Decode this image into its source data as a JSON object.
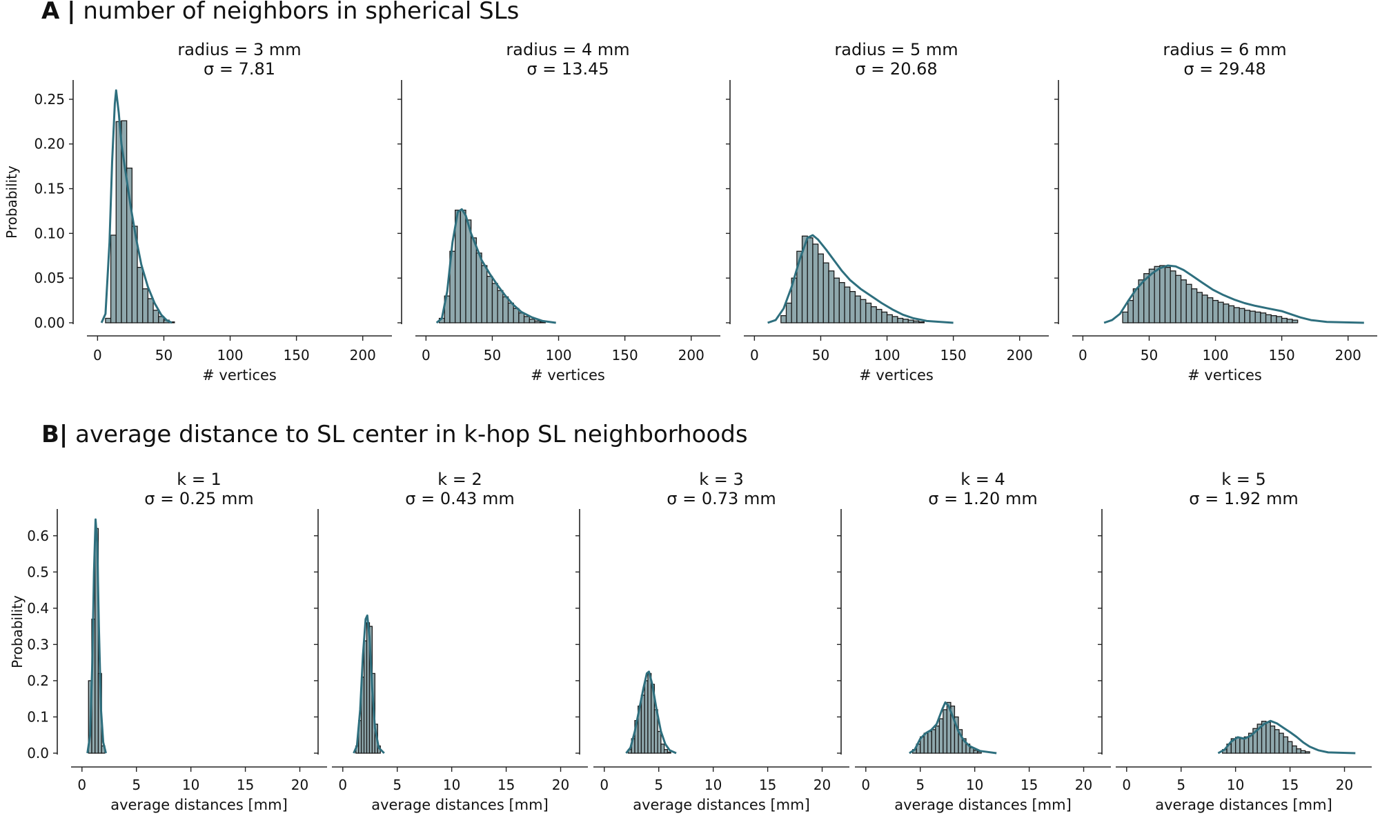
{
  "panel_a": {
    "letter": "A",
    "separator": "|",
    "title": "number of neighbors in spherical SLs"
  },
  "panel_b": {
    "letter": "B",
    "separator": "|",
    "title": "average distance to SL center in k-hop SL neighborhoods"
  },
  "colors": {
    "bar_fill": "#8fa8ad",
    "bar_edge": "#1a1a1a",
    "kde": "#2e6f7e",
    "axis": "#222222"
  },
  "chart_data": [
    {
      "type": "bar",
      "panel": "A",
      "subtitle_line1": "radius = 3 mm",
      "subtitle_line2": "σ = 7.81",
      "xlabel": "# vertices",
      "ylabel": "Probability",
      "xlim": [
        -8,
        222
      ],
      "ylim": [
        0,
        0.27
      ],
      "xticks": [
        0,
        50,
        100,
        150,
        200
      ],
      "yticks": [
        0.0,
        0.05,
        0.1,
        0.15,
        0.2,
        0.25
      ],
      "ytick_labels": [
        "0.00",
        "0.05",
        "0.10",
        "0.15",
        "0.20",
        "0.25"
      ],
      "bin_start": 6,
      "bin_width": 4,
      "values": [
        0.005,
        0.098,
        0.225,
        0.226,
        0.173,
        0.108,
        0.062,
        0.038,
        0.027,
        0.014,
        0.007,
        0.003,
        0.001
      ],
      "kde": [
        [
          3,
          0.0
        ],
        [
          6,
          0.01
        ],
        [
          9,
          0.09
        ],
        [
          11,
          0.18
        ],
        [
          13,
          0.245
        ],
        [
          14,
          0.26
        ],
        [
          16,
          0.235
        ],
        [
          18,
          0.2
        ],
        [
          21,
          0.17
        ],
        [
          25,
          0.13
        ],
        [
          29,
          0.095
        ],
        [
          33,
          0.065
        ],
        [
          38,
          0.04
        ],
        [
          43,
          0.022
        ],
        [
          48,
          0.009
        ],
        [
          52,
          0.003
        ],
        [
          56,
          0.0
        ]
      ]
    },
    {
      "type": "bar",
      "panel": "A",
      "subtitle_line1": "radius = 4 mm",
      "subtitle_line2": "σ = 13.45",
      "xlabel": "# vertices",
      "ylabel": "",
      "xlim": [
        -8,
        222
      ],
      "ylim": [
        0,
        0.27
      ],
      "xticks": [
        0,
        50,
        100,
        150,
        200
      ],
      "yticks": [
        0.0,
        0.05,
        0.1,
        0.15,
        0.2,
        0.25
      ],
      "ytick_labels": [
        "",
        "",
        "",
        "",
        "",
        ""
      ],
      "bin_start": 10,
      "bin_width": 4,
      "values": [
        0.005,
        0.03,
        0.08,
        0.126,
        0.126,
        0.115,
        0.095,
        0.078,
        0.064,
        0.052,
        0.044,
        0.036,
        0.029,
        0.022,
        0.016,
        0.011,
        0.007,
        0.004,
        0.002,
        0.001
      ],
      "kde": [
        [
          8,
          0.0
        ],
        [
          12,
          0.005
        ],
        [
          16,
          0.035
        ],
        [
          20,
          0.09
        ],
        [
          24,
          0.124
        ],
        [
          27,
          0.127
        ],
        [
          30,
          0.12
        ],
        [
          34,
          0.1
        ],
        [
          38,
          0.085
        ],
        [
          42,
          0.07
        ],
        [
          48,
          0.055
        ],
        [
          54,
          0.042
        ],
        [
          60,
          0.03
        ],
        [
          66,
          0.02
        ],
        [
          72,
          0.012
        ],
        [
          80,
          0.006
        ],
        [
          88,
          0.002
        ],
        [
          98,
          0.0
        ]
      ]
    },
    {
      "type": "bar",
      "panel": "A",
      "subtitle_line1": "radius = 5 mm",
      "subtitle_line2": "σ = 20.68",
      "xlabel": "# vertices",
      "ylabel": "",
      "xlim": [
        -8,
        222
      ],
      "ylim": [
        0,
        0.27
      ],
      "xticks": [
        0,
        50,
        100,
        150,
        200
      ],
      "yticks": [
        0.0,
        0.05,
        0.1,
        0.15,
        0.2,
        0.25
      ],
      "ytick_labels": [
        "",
        "",
        "",
        "",
        "",
        ""
      ],
      "bin_start": 20,
      "bin_width": 4,
      "values": [
        0.008,
        0.022,
        0.05,
        0.08,
        0.097,
        0.095,
        0.088,
        0.077,
        0.067,
        0.058,
        0.05,
        0.045,
        0.04,
        0.035,
        0.03,
        0.026,
        0.022,
        0.018,
        0.015,
        0.012,
        0.009,
        0.007,
        0.005,
        0.004,
        0.003,
        0.002,
        0.001
      ],
      "kde": [
        [
          10,
          0.0
        ],
        [
          16,
          0.003
        ],
        [
          22,
          0.016
        ],
        [
          28,
          0.04
        ],
        [
          34,
          0.07
        ],
        [
          40,
          0.095
        ],
        [
          44,
          0.098
        ],
        [
          48,
          0.093
        ],
        [
          54,
          0.082
        ],
        [
          60,
          0.07
        ],
        [
          66,
          0.058
        ],
        [
          72,
          0.048
        ],
        [
          80,
          0.038
        ],
        [
          88,
          0.03
        ],
        [
          96,
          0.022
        ],
        [
          104,
          0.015
        ],
        [
          112,
          0.009
        ],
        [
          120,
          0.005
        ],
        [
          130,
          0.002
        ],
        [
          150,
          0.0
        ]
      ]
    },
    {
      "type": "bar",
      "panel": "A",
      "subtitle_line1": "radius = 6 mm",
      "subtitle_line2": "σ = 29.48",
      "xlabel": "# vertices",
      "ylabel": "",
      "xlim": [
        -8,
        222
      ],
      "ylim": [
        0,
        0.27
      ],
      "xticks": [
        0,
        50,
        100,
        150,
        200
      ],
      "yticks": [
        0.0,
        0.05,
        0.1,
        0.15,
        0.2,
        0.25
      ],
      "ytick_labels": [
        "",
        "",
        "",
        "",
        "",
        ""
      ],
      "bin_start": 30,
      "bin_width": 4,
      "values": [
        0.012,
        0.025,
        0.038,
        0.048,
        0.055,
        0.06,
        0.063,
        0.064,
        0.062,
        0.058,
        0.053,
        0.048,
        0.043,
        0.038,
        0.034,
        0.031,
        0.028,
        0.025,
        0.023,
        0.021,
        0.019,
        0.017,
        0.016,
        0.014,
        0.013,
        0.012,
        0.011,
        0.009,
        0.008,
        0.007,
        0.005,
        0.004,
        0.003
      ],
      "kde": [
        [
          16,
          0.0
        ],
        [
          22,
          0.003
        ],
        [
          28,
          0.01
        ],
        [
          34,
          0.024
        ],
        [
          40,
          0.037
        ],
        [
          46,
          0.047
        ],
        [
          52,
          0.055
        ],
        [
          58,
          0.061
        ],
        [
          64,
          0.064
        ],
        [
          70,
          0.063
        ],
        [
          76,
          0.059
        ],
        [
          82,
          0.053
        ],
        [
          90,
          0.045
        ],
        [
          98,
          0.037
        ],
        [
          106,
          0.031
        ],
        [
          114,
          0.026
        ],
        [
          122,
          0.022
        ],
        [
          130,
          0.019
        ],
        [
          140,
          0.016
        ],
        [
          150,
          0.013
        ],
        [
          158,
          0.009
        ],
        [
          164,
          0.006
        ],
        [
          172,
          0.003
        ],
        [
          184,
          0.001
        ],
        [
          212,
          0.0
        ]
      ]
    },
    {
      "type": "bar",
      "panel": "B",
      "subtitle_line1": "k = 1",
      "subtitle_line2": "σ = 0.25 mm",
      "xlabel": "average distances [mm]",
      "ylabel": "Probability",
      "xlim": [
        -1,
        22.5
      ],
      "ylim": [
        0,
        0.67
      ],
      "xticks": [
        0,
        5,
        10,
        15,
        20
      ],
      "yticks": [
        0.0,
        0.1,
        0.2,
        0.3,
        0.4,
        0.5,
        0.6
      ],
      "ytick_labels": [
        "0.0",
        "0.1",
        "0.2",
        "0.3",
        "0.4",
        "0.5",
        "0.6"
      ],
      "bin_start": 0.6,
      "bin_width": 0.3,
      "values": [
        0.2,
        0.37,
        0.62,
        0.22,
        0.02
      ],
      "kde": [
        [
          0.5,
          0.0
        ],
        [
          0.75,
          0.05
        ],
        [
          0.95,
          0.25
        ],
        [
          1.1,
          0.5
        ],
        [
          1.25,
          0.645
        ],
        [
          1.4,
          0.58
        ],
        [
          1.55,
          0.35
        ],
        [
          1.75,
          0.12
        ],
        [
          1.95,
          0.03
        ],
        [
          2.2,
          0.0
        ]
      ]
    },
    {
      "type": "bar",
      "panel": "B",
      "subtitle_line1": "k = 2",
      "subtitle_line2": "σ = 0.43 mm",
      "xlabel": "average distances [mm]",
      "ylabel": "",
      "xlim": [
        -1,
        22.5
      ],
      "ylim": [
        0,
        0.67
      ],
      "xticks": [
        0,
        5,
        10,
        15,
        20
      ],
      "yticks": [
        0.0,
        0.1,
        0.2,
        0.3,
        0.4,
        0.5,
        0.6
      ],
      "ytick_labels": [
        "",
        "",
        "",
        "",
        "",
        "",
        ""
      ],
      "bin_start": 1.2,
      "bin_width": 0.25,
      "values": [
        0.02,
        0.09,
        0.21,
        0.31,
        0.36,
        0.35,
        0.22,
        0.08,
        0.02
      ],
      "kde": [
        [
          1.0,
          0.0
        ],
        [
          1.3,
          0.02
        ],
        [
          1.6,
          0.12
        ],
        [
          1.85,
          0.27
        ],
        [
          2.1,
          0.37
        ],
        [
          2.25,
          0.38
        ],
        [
          2.45,
          0.32
        ],
        [
          2.7,
          0.18
        ],
        [
          2.95,
          0.07
        ],
        [
          3.3,
          0.015
        ],
        [
          3.8,
          0.0
        ]
      ]
    },
    {
      "type": "bar",
      "panel": "B",
      "subtitle_line1": "k = 3",
      "subtitle_line2": "σ = 0.73 mm",
      "xlabel": "average distances [mm]",
      "ylabel": "",
      "xlim": [
        -1,
        22.5
      ],
      "ylim": [
        0,
        0.67
      ],
      "xticks": [
        0,
        5,
        10,
        15,
        20
      ],
      "yticks": [
        0.0,
        0.1,
        0.2,
        0.3,
        0.4,
        0.5,
        0.6
      ],
      "ytick_labels": [
        "",
        "",
        "",
        "",
        "",
        "",
        ""
      ],
      "bin_start": 2.2,
      "bin_width": 0.3,
      "values": [
        0.01,
        0.04,
        0.09,
        0.13,
        0.16,
        0.2,
        0.22,
        0.19,
        0.12,
        0.06,
        0.025,
        0.01,
        0.003
      ],
      "kde": [
        [
          2.0,
          0.0
        ],
        [
          2.4,
          0.015
        ],
        [
          2.8,
          0.06
        ],
        [
          3.2,
          0.12
        ],
        [
          3.6,
          0.18
        ],
        [
          3.9,
          0.22
        ],
        [
          4.1,
          0.225
        ],
        [
          4.4,
          0.19
        ],
        [
          4.8,
          0.12
        ],
        [
          5.2,
          0.06
        ],
        [
          5.6,
          0.025
        ],
        [
          6.0,
          0.008
        ],
        [
          6.6,
          0.0
        ]
      ]
    },
    {
      "type": "bar",
      "panel": "B",
      "subtitle_line1": "k = 4",
      "subtitle_line2": "σ = 1.20 mm",
      "xlabel": "average distances [mm]",
      "ylabel": "",
      "xlim": [
        -1,
        22.5
      ],
      "ylim": [
        0,
        0.67
      ],
      "xticks": [
        0,
        5,
        10,
        15,
        20
      ],
      "yticks": [
        0.0,
        0.1,
        0.2,
        0.3,
        0.4,
        0.5,
        0.6
      ],
      "ytick_labels": [
        "",
        "",
        "",
        "",
        "",
        "",
        ""
      ],
      "bin_start": 4.3,
      "bin_width": 0.35,
      "values": [
        0.01,
        0.025,
        0.045,
        0.055,
        0.06,
        0.065,
        0.075,
        0.095,
        0.12,
        0.14,
        0.13,
        0.1,
        0.065,
        0.04,
        0.025,
        0.015,
        0.008,
        0.004
      ],
      "kde": [
        [
          4.0,
          0.0
        ],
        [
          4.5,
          0.01
        ],
        [
          5.0,
          0.04
        ],
        [
          5.5,
          0.055
        ],
        [
          6.0,
          0.064
        ],
        [
          6.5,
          0.08
        ],
        [
          7.0,
          0.12
        ],
        [
          7.3,
          0.14
        ],
        [
          7.6,
          0.13
        ],
        [
          8.0,
          0.1
        ],
        [
          8.5,
          0.06
        ],
        [
          9.0,
          0.035
        ],
        [
          9.5,
          0.02
        ],
        [
          10.5,
          0.006
        ],
        [
          12.0,
          0.0
        ]
      ]
    },
    {
      "type": "bar",
      "panel": "B",
      "subtitle_line1": "k = 5",
      "subtitle_line2": "σ = 1.92 mm",
      "xlabel": "average distances [mm]",
      "ylabel": "",
      "xlim": [
        -1,
        22.5
      ],
      "ylim": [
        0,
        0.67
      ],
      "xticks": [
        0,
        5,
        10,
        15,
        20
      ],
      "yticks": [
        0.0,
        0.1,
        0.2,
        0.3,
        0.4,
        0.5,
        0.6
      ],
      "ytick_labels": [
        "",
        "",
        "",
        "",
        "",
        "",
        ""
      ],
      "bin_start": 8.8,
      "bin_width": 0.4,
      "values": [
        0.01,
        0.025,
        0.04,
        0.044,
        0.04,
        0.045,
        0.055,
        0.068,
        0.08,
        0.088,
        0.085,
        0.075,
        0.065,
        0.055,
        0.045,
        0.032,
        0.02,
        0.012,
        0.007,
        0.004
      ],
      "kde": [
        [
          8.4,
          0.0
        ],
        [
          9.0,
          0.01
        ],
        [
          9.6,
          0.032
        ],
        [
          10.2,
          0.044
        ],
        [
          10.8,
          0.04
        ],
        [
          11.4,
          0.048
        ],
        [
          12.0,
          0.064
        ],
        [
          12.6,
          0.08
        ],
        [
          13.2,
          0.089
        ],
        [
          13.8,
          0.082
        ],
        [
          14.4,
          0.07
        ],
        [
          15.0,
          0.058
        ],
        [
          15.6,
          0.045
        ],
        [
          16.2,
          0.03
        ],
        [
          16.8,
          0.018
        ],
        [
          17.6,
          0.008
        ],
        [
          18.5,
          0.002
        ],
        [
          21.0,
          0.0
        ]
      ]
    }
  ]
}
